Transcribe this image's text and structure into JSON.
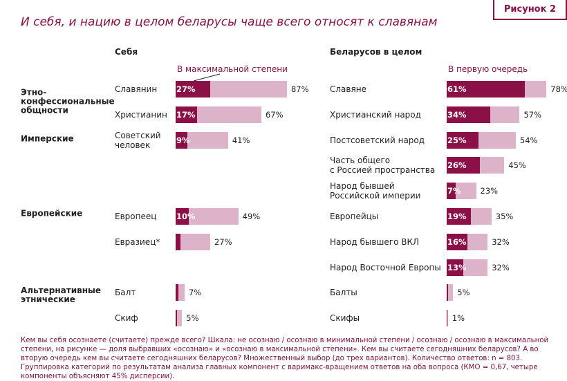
{
  "header": {
    "figure": "Рисунок 2",
    "title": "И себя, и нацию в целом беларусы чаще всего относят к славянам"
  },
  "chart_data": [
    {
      "type": "bar",
      "orientation": "horizontal",
      "title": "Себя",
      "annotation": "В максимальной степени",
      "groups": [
        "Этно-\nконфессиональные\nобщности",
        "Имперские",
        "Европейские",
        "Альтернативные\nэтнические"
      ],
      "categories": [
        "Славянин",
        "Христианин",
        "Советский\nчеловек",
        "Европеец",
        "Евразиец*",
        "Балт",
        "Скиф"
      ],
      "series": [
        {
          "color": "#dcb3c9",
          "values": [
            87,
            67,
            41,
            49,
            27,
            7,
            5
          ],
          "value_labels": [
            "87%",
            "67%",
            "41%",
            "49%",
            "27%",
            "7%",
            "5%"
          ]
        },
        {
          "color": "#8c1048",
          "values": [
            27,
            17,
            9,
            10,
            4,
            2,
            1
          ],
          "value_labels": [
            "27%",
            "17%",
            "9%",
            "10%",
            null,
            null,
            null
          ]
        }
      ]
    },
    {
      "type": "bar",
      "orientation": "horizontal",
      "title": "Беларусов в целом",
      "annotation": "В первую очередь",
      "categories": [
        "Славяне",
        "Христианский народ",
        "Постсоветский народ",
        "Часть общего\nс Россией пространства",
        "Народ бывшей\nРоссийской империи",
        "Европейцы",
        "Народ бывшего ВКЛ",
        "Народ Восточной Европы",
        "Балты",
        "Скифы"
      ],
      "series": [
        {
          "color": "#dcb3c9",
          "values": [
            78,
            57,
            54,
            45,
            23,
            35,
            32,
            32,
            5,
            1
          ],
          "value_labels": [
            "78%",
            "57%",
            "54%",
            "45%",
            "23%",
            "35%",
            "32%",
            "32%",
            "5%",
            "1%"
          ]
        },
        {
          "color": "#8c1048",
          "values": [
            61,
            34,
            25,
            26,
            7,
            19,
            16,
            13,
            1,
            0.5
          ],
          "value_labels": [
            "61%",
            "34%",
            "25%",
            "26%",
            "7%",
            "19%",
            "16%",
            "13%",
            null,
            null
          ]
        }
      ]
    }
  ],
  "footnote": "Кем вы себя осознаете (считаете) прежде всего? Шкала: не осознаю / осознаю в минимальной степени / осознаю / осознаю в максимальной степени, на рисунке — доля выбравших «осознаю» и «осознаю в максимальной степени». Кем вы считаете сегодняшних беларусов? А во вторую очередь кем вы считаете сегодняшних беларусов? Множественный выбор (до трех вариантов). Количество ответов: n = 803. Группировка категорий по результатам анализа главных компонент с варимакс-вращением ответов на оба вопроса (КМО = 0,67, четыре компоненты объясняют 45% дисперсии)."
}
